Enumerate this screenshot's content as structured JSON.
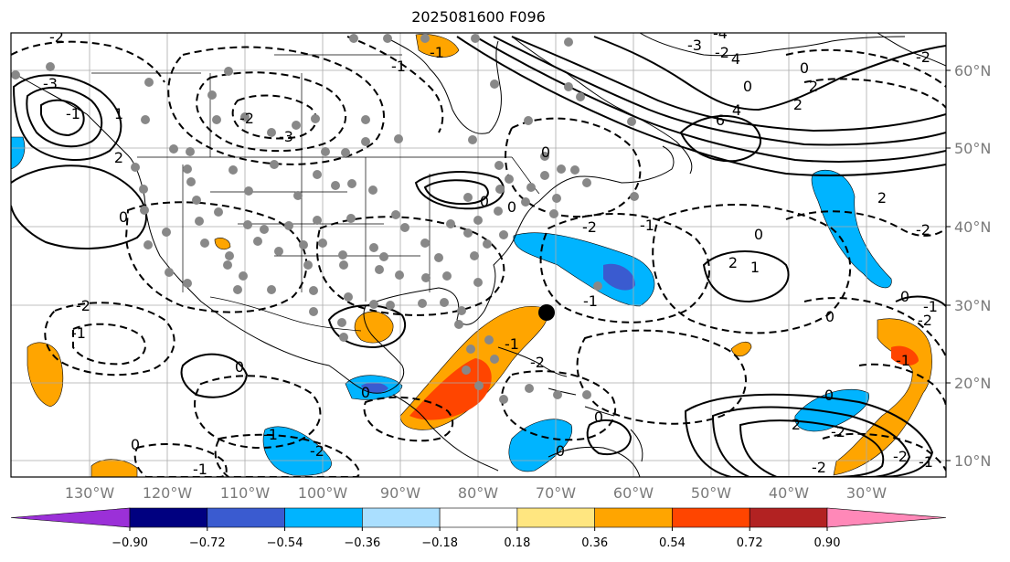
{
  "title": "2025081600 F096",
  "lat_labels": [
    "60°N",
    "50°N",
    "40°N",
    "30°N",
    "20°N",
    "10°N"
  ],
  "lon_labels": [
    "130°W",
    "120°W",
    "110°W",
    "100°W",
    "90°W",
    "80°W",
    "70°W",
    "60°W",
    "50°W",
    "40°W",
    "30°W"
  ],
  "colorbar": {
    "ticks": [
      "−0.90",
      "−0.72",
      "−0.54",
      "−0.36",
      "−0.18",
      "0.18",
      "0.36",
      "0.54",
      "0.72",
      "0.90"
    ],
    "colors": [
      "#9b30d8",
      "#000080",
      "#3a5bd0",
      "#00b4ff",
      "#aadfff",
      "#ffffff",
      "#ffe680",
      "#ffa500",
      "#ff4500",
      "#b22222",
      "#ff88b8"
    ]
  },
  "contour_labels": [
    "-2",
    "-1",
    "-2",
    "-3",
    "-1",
    "-2",
    "0",
    "2",
    "1",
    "2",
    "0",
    "-1",
    "-2",
    "0",
    "-3",
    "-1",
    "4",
    "-4",
    "-3",
    "-2",
    "0",
    "6",
    "4",
    "2",
    "0",
    "-1",
    "-2",
    "2",
    "-2",
    "1",
    "2",
    "0",
    "-1",
    "0",
    "-2",
    "-1",
    "0",
    "-1",
    "-2",
    "-2",
    "-2",
    "0",
    "2",
    "-1",
    "0",
    "0",
    "-1",
    "0",
    "-2",
    "0",
    "-2",
    "-1",
    "0",
    "0",
    "-1"
  ],
  "station_marker": "black-dot"
}
